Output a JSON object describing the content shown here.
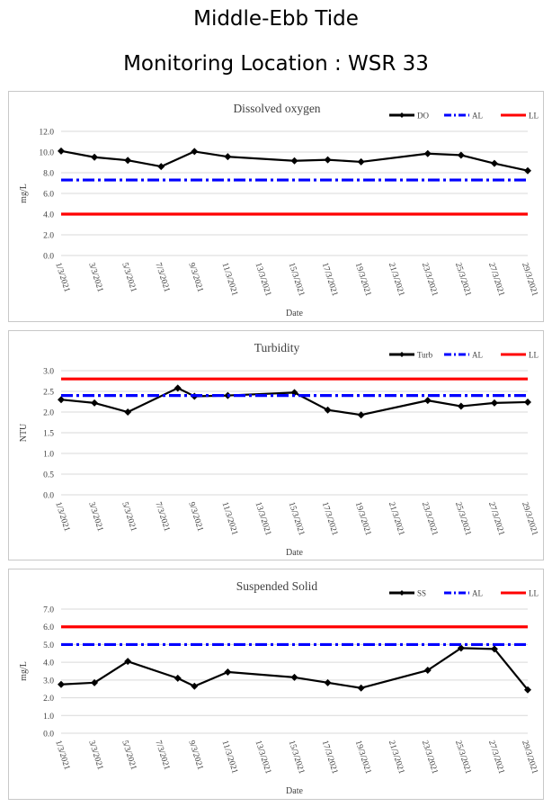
{
  "header": {
    "line1": "Middle-Ebb Tide",
    "line2": "Monitoring Location : WSR 33"
  },
  "chart_data": [
    {
      "type": "line",
      "title": "Dissolved oxygen",
      "xlabel": "Date",
      "ylabel": "mg/L",
      "ylim": [
        0,
        12
      ],
      "yticks": [
        "0.0",
        "2.0",
        "4.0",
        "6.0",
        "8.0",
        "10.0",
        "12.0"
      ],
      "x_ticks": [
        "1/3/2021",
        "3/3/2021",
        "5/3/2021",
        "7/3/2021",
        "9/3/2021",
        "11/3/2021",
        "13/3/2021",
        "15/3/2021",
        "17/3/2021",
        "19/3/2021",
        "21/3/2021",
        "23/3/2021",
        "25/3/2021",
        "27/3/2021",
        "29/3/2021"
      ],
      "xlim": [
        "1/3/2021",
        "29/3/2021"
      ],
      "legend_position": "top-right",
      "grid": "horizontal",
      "series": [
        {
          "name": "DO",
          "color": "#000000",
          "style": "solid-markers",
          "x": [
            "1/3/2021",
            "3/3/2021",
            "5/3/2021",
            "7/3/2021",
            "9/3/2021",
            "11/3/2021",
            "15/3/2021",
            "17/3/2021",
            "19/3/2021",
            "23/3/2021",
            "25/3/2021",
            "27/3/2021",
            "29/3/2021"
          ],
          "values": [
            10.1,
            9.5,
            9.2,
            8.6,
            10.05,
            9.55,
            9.15,
            9.25,
            9.05,
            9.85,
            9.7,
            8.9,
            8.2
          ]
        },
        {
          "name": "AL",
          "color": "#0000ff",
          "style": "dash-dot",
          "value": 7.3
        },
        {
          "name": "LL",
          "color": "#ff0000",
          "style": "solid",
          "value": 4.0
        }
      ]
    },
    {
      "type": "line",
      "title": "Turbidity",
      "xlabel": "Date",
      "ylabel": "NTU",
      "ylim": [
        0,
        3
      ],
      "yticks": [
        "0.0",
        "0.5",
        "1.0",
        "1.5",
        "2.0",
        "2.5",
        "3.0"
      ],
      "x_ticks": [
        "1/3/2021",
        "3/3/2021",
        "5/3/2021",
        "7/3/2021",
        "9/3/2021",
        "11/3/2021",
        "13/3/2021",
        "15/3/2021",
        "17/3/2021",
        "19/3/2021",
        "21/3/2021",
        "23/3/2021",
        "25/3/2021",
        "27/3/2021",
        "29/3/2021"
      ],
      "xlim": [
        "1/3/2021",
        "29/3/2021"
      ],
      "legend_position": "top-right",
      "grid": "horizontal",
      "series": [
        {
          "name": "Turb",
          "color": "#000000",
          "style": "solid-markers",
          "x": [
            "1/3/2021",
            "3/3/2021",
            "5/3/2021",
            "8/3/2021",
            "9/3/2021",
            "11/3/2021",
            "15/3/2021",
            "17/3/2021",
            "19/3/2021",
            "23/3/2021",
            "25/3/2021",
            "27/3/2021",
            "29/3/2021"
          ],
          "values": [
            2.3,
            2.22,
            2.0,
            2.58,
            2.38,
            2.4,
            2.47,
            2.05,
            1.93,
            2.28,
            2.14,
            2.22,
            2.24
          ]
        },
        {
          "name": "AL",
          "color": "#0000ff",
          "style": "dash-dot",
          "value": 2.4
        },
        {
          "name": "LL",
          "color": "#ff0000",
          "style": "solid",
          "value": 2.8
        }
      ]
    },
    {
      "type": "line",
      "title": "Suspended Solid",
      "xlabel": "Date",
      "ylabel": "mg/L",
      "ylim": [
        0,
        7
      ],
      "yticks": [
        "0.0",
        "1.0",
        "2.0",
        "3.0",
        "4.0",
        "5.0",
        "6.0",
        "7.0"
      ],
      "x_ticks": [
        "1/3/2021",
        "3/3/2021",
        "5/3/2021",
        "7/3/2021",
        "9/3/2021",
        "11/3/2021",
        "13/3/2021",
        "15/3/2021",
        "17/3/2021",
        "19/3/2021",
        "21/3/2021",
        "23/3/2021",
        "25/3/2021",
        "27/3/2021",
        "29/3/2021"
      ],
      "xlim": [
        "1/3/2021",
        "29/3/2021"
      ],
      "legend_position": "top-right",
      "grid": "horizontal",
      "series": [
        {
          "name": "SS",
          "color": "#000000",
          "style": "solid-markers",
          "x": [
            "1/3/2021",
            "3/3/2021",
            "5/3/2021",
            "8/3/2021",
            "9/3/2021",
            "11/3/2021",
            "15/3/2021",
            "17/3/2021",
            "19/3/2021",
            "23/3/2021",
            "25/3/2021",
            "27/3/2021",
            "29/3/2021"
          ],
          "values": [
            2.75,
            2.85,
            4.05,
            3.1,
            2.65,
            3.45,
            3.15,
            2.85,
            2.55,
            3.55,
            4.8,
            4.75,
            2.45
          ]
        },
        {
          "name": "AL",
          "color": "#0000ff",
          "style": "dash-dot",
          "value": 5.0
        },
        {
          "name": "LL",
          "color": "#ff0000",
          "style": "solid",
          "value": 6.0
        }
      ]
    }
  ]
}
